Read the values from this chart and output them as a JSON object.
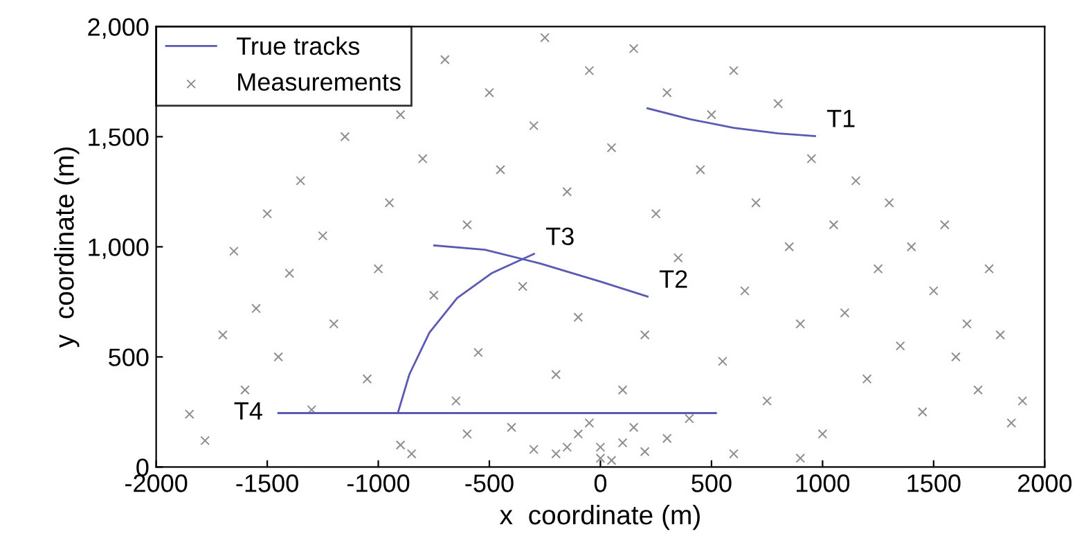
{
  "chart_data": {
    "type": "scatter",
    "xlabel": "x  coordinate (m)",
    "ylabel": "y  coordinate (m)",
    "xlim": [
      -2000,
      2000
    ],
    "ylim": [
      0,
      2000
    ],
    "xticks": [
      -2000,
      -1500,
      -1000,
      -500,
      0,
      500,
      1000,
      1500,
      2000
    ],
    "yticks": [
      0,
      500,
      {
        "value": 1000,
        "label": "1,000"
      },
      {
        "value": 1500,
        "label": "1,500"
      },
      {
        "value": 2000,
        "label": "2,000"
      }
    ],
    "legend": "top left",
    "grid": false,
    "series": [
      {
        "name": "True tracks",
        "type": "line",
        "color": "#5a5ab4",
        "marker": "none",
        "line_style": "solid",
        "x": [
          212,
          400,
          600,
          800,
          966
        ],
        "values": [
          1629,
          1580,
          1540,
          1515,
          1503
        ]
      },
      {
        "type": "line",
        "color": "#5a5ab4",
        "marker": "none",
        "line_style": "solid",
        "x": [
          -748,
          -520,
          -270,
          0,
          212
        ],
        "values": [
          1006,
          987,
          924,
          842,
          774
        ]
      },
      {
        "type": "line",
        "color": "#5a5ab4",
        "marker": "none",
        "line_style": "solid",
        "x": [
          -910,
          -860,
          -770,
          -645,
          -490,
          -299
        ],
        "values": [
          252,
          421,
          610,
          767,
          880,
          968
        ]
      },
      {
        "type": "line",
        "color": "#5a5ab4",
        "marker": "none",
        "line_style": "solid",
        "x": [
          -1450,
          520
        ],
        "values": [
          245,
          245
        ]
      },
      {
        "name": "Measurements",
        "color": "#8c8c8c",
        "marker": "cross",
        "x": [
          -1850,
          -1780,
          -1700,
          -1650,
          -1600,
          -1550,
          -1500,
          -1450,
          -1400,
          -1350,
          -1300,
          -1250,
          -1200,
          -1150,
          -1100,
          -1050,
          -1000,
          -950,
          -900,
          -850,
          -800,
          -750,
          -700,
          -650,
          -600,
          -550,
          -500,
          -450,
          -400,
          -350,
          -300,
          -250,
          -200,
          -150,
          -100,
          -50,
          0,
          50,
          100,
          150,
          200,
          250,
          300,
          350,
          400,
          450,
          500,
          550,
          600,
          650,
          700,
          750,
          800,
          850,
          900,
          950,
          1000,
          1050,
          1100,
          1150,
          1200,
          1250,
          1300,
          1350,
          1400,
          1450,
          1500,
          1550,
          1600,
          1650,
          1700,
          1750,
          1800,
          1850,
          1900,
          -200,
          -100,
          0,
          100,
          200,
          -50,
          50,
          150,
          -150,
          300,
          -300,
          600,
          -600,
          900,
          -900
        ],
        "values": [
          240,
          120,
          600,
          980,
          350,
          720,
          1150,
          500,
          880,
          1300,
          260,
          1050,
          650,
          1500,
          1750,
          400,
          900,
          1200,
          1600,
          60,
          1400,
          780,
          1850,
          300,
          1100,
          520,
          1700,
          1350,
          180,
          820,
          1550,
          1950,
          420,
          1250,
          680,
          1800,
          90,
          1450,
          350,
          1900,
          600,
          1150,
          1700,
          950,
          220,
          1350,
          1600,
          480,
          1800,
          800,
          1200,
          300,
          1650,
          1000,
          650,
          1400,
          150,
          1100,
          700,
          1300,
          400,
          900,
          1200,
          550,
          1000,
          250,
          800,
          1100,
          500,
          650,
          350,
          900,
          600,
          200,
          300,
          60,
          150,
          40,
          110,
          70,
          200,
          30,
          180,
          90,
          130,
          80,
          60,
          150,
          40,
          100
        ]
      }
    ],
    "annotations": [
      {
        "text": "T1",
        "x": 966,
        "y": 1503
      },
      {
        "text": "T2",
        "x": 212,
        "y": 774
      },
      {
        "text": "T3",
        "x": -299,
        "y": 968
      },
      {
        "text": "T4",
        "x": -1450,
        "y": 245
      }
    ]
  }
}
